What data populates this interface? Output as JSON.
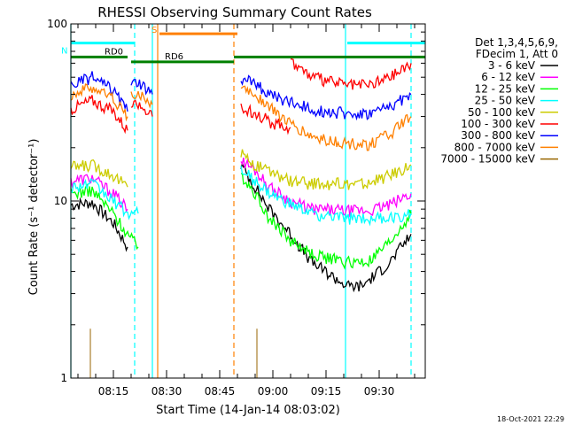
{
  "chart_data": {
    "type": "line",
    "title": "RHESSI Observing Summary Count Rates",
    "xlabel": "Start Time (14-Jan-14 08:03:02)",
    "ylabel": "Count Rate (s⁻¹ detector⁻¹)",
    "yscale": "log",
    "ylim": [
      1,
      100
    ],
    "xlim_minutes_after_0803": [
      0,
      100
    ],
    "x_ticks": [
      "08:15",
      "08:30",
      "08:45",
      "09:00",
      "09:15",
      "09:30"
    ],
    "y_ticks": [
      "1",
      "10",
      "100"
    ],
    "legend_header": [
      "Det 1,3,4,5,6,9,",
      "FDecim 1, Att 0"
    ],
    "legend_placement": "right",
    "timestamp": "18-Oct-2021 22:29",
    "series": [
      {
        "name": "3 - 6 keV",
        "color": "#000000",
        "segments": [
          {
            "t": [
              0,
              6,
              12,
              16
            ],
            "y": [
              9.5,
              9.8,
              7.5,
              5.5
            ]
          },
          {
            "t": [
              48,
              52,
              56,
              62,
              68,
              78,
              82,
              90,
              96
            ],
            "y": [
              16,
              12,
              9,
              6.5,
              4.5,
              3.3,
              3.3,
              4.5,
              6.5
            ]
          }
        ]
      },
      {
        "name": "6 - 12 keV",
        "color": "#ff00ff",
        "segments": [
          {
            "t": [
              0,
              6,
              12,
              16
            ],
            "y": [
              13,
              13.5,
              11,
              9
            ]
          },
          {
            "t": [
              48,
              52,
              56,
              62,
              68,
              78,
              84,
              90,
              96
            ],
            "y": [
              17,
              15,
              12,
              10,
              9,
              8.8,
              8.8,
              9.5,
              11
            ]
          }
        ]
      },
      {
        "name": "12 - 25 keV",
        "color": "#00ff00",
        "segments": [
          {
            "t": [
              0,
              6,
              12,
              16,
              19
            ],
            "y": [
              11,
              11.5,
              8.5,
              6.5,
              5.5
            ]
          },
          {
            "t": [
              48,
              52,
              56,
              62,
              68,
              78,
              84,
              90,
              96
            ],
            "y": [
              14,
              11,
              8,
              6,
              5,
              4.5,
              4.5,
              5.8,
              8.5
            ]
          }
        ]
      },
      {
        "name": "25 - 50 keV",
        "color": "#00ffff",
        "segments": [
          {
            "t": [
              0,
              6,
              12,
              16,
              19
            ],
            "y": [
              12,
              12.5,
              10,
              8.5,
              8.5
            ]
          },
          {
            "t": [
              48,
              52,
              56,
              62,
              68,
              76,
              84,
              90,
              96
            ],
            "y": [
              15,
              13,
              11,
              9.5,
              8.5,
              8.0,
              8.0,
              8.0,
              8.5
            ]
          }
        ]
      },
      {
        "name": "50 - 100 keV",
        "color": "#cccc00",
        "segments": [
          {
            "t": [
              0,
              6,
              12,
              16
            ],
            "y": [
              15.5,
              16,
              14,
              12
            ]
          },
          {
            "t": [
              48,
              52,
              56,
              62,
              68,
              78,
              84,
              90,
              96
            ],
            "y": [
              19,
              16,
              14.5,
              13,
              12.5,
              12.5,
              12.5,
              14,
              16
            ]
          }
        ]
      },
      {
        "name": "100 - 300 keV",
        "color": "#ff0000",
        "segments": [
          {
            "t": [
              0,
              6,
              12,
              16
            ],
            "y": [
              33,
              37,
              32,
              25
            ]
          },
          {
            "t": [
              17,
              19,
              23
            ],
            "y": [
              35,
              36,
              30
            ]
          },
          {
            "t": [
              48,
              52,
              56,
              62
            ],
            "y": [
              33,
              32,
              28,
              26
            ]
          },
          {
            "t": [
              62,
              68,
              78,
              84,
              90,
              96
            ],
            "y": [
              62,
              50,
              45,
              45,
              50,
              60
            ]
          }
        ]
      },
      {
        "name": "300 - 800 keV",
        "color": "#0000ff",
        "segments": [
          {
            "t": [
              0,
              6,
              12,
              16
            ],
            "y": [
              45,
              50,
              42,
              32
            ]
          },
          {
            "t": [
              17,
              19,
              23
            ],
            "y": [
              45,
              46,
              40
            ]
          },
          {
            "t": [
              48,
              52,
              56,
              62,
              68,
              78,
              84,
              90,
              96
            ],
            "y": [
              50,
              46,
              40,
              36,
              33,
              31,
              31,
              34,
              40
            ]
          }
        ]
      },
      {
        "name": "800 - 7000 keV",
        "color": "#ff8000",
        "segments": [
          {
            "t": [
              0,
              6,
              12,
              16
            ],
            "y": [
              40,
              44,
              38,
              30
            ]
          },
          {
            "t": [
              17,
              19,
              23
            ],
            "y": [
              40,
              41,
              35
            ]
          },
          {
            "t": [
              48,
              52,
              56,
              62,
              68,
              78,
              84,
              90,
              96
            ],
            "y": [
              44,
              40,
              34,
              27,
              23,
              21,
              21,
              24,
              30
            ]
          }
        ]
      },
      {
        "name": "7000 - 15000 keV",
        "color": "#996600",
        "segments": [
          {
            "t": [
              5.5
            ],
            "y": [
              1.9
            ]
          },
          {
            "t": [
              52.5
            ],
            "y": [
              1.9
            ]
          }
        ]
      }
    ],
    "state_bars": [
      {
        "label": "RD0",
        "color": "#008000",
        "y": 65,
        "from": 0,
        "to": 16
      },
      {
        "label": "RD6",
        "color": "#008000",
        "y": 61,
        "from": 17,
        "to": 46
      },
      {
        "label": "",
        "color": "#008000",
        "y": 65,
        "from": 46,
        "to": 100
      },
      {
        "label": "N",
        "color": "#00ffff",
        "y": 78,
        "from": 0,
        "to": 18
      },
      {
        "label": "",
        "color": "#00ffff",
        "y": 78,
        "from": 78,
        "to": 100
      },
      {
        "label": "S",
        "color": "#ff8000",
        "y": 88,
        "from": 25,
        "to": 47
      }
    ],
    "vertical_markers": [
      {
        "t": 0,
        "color": "#00ffff",
        "style": "solid"
      },
      {
        "t": 18,
        "color": "#00ffff",
        "style": "dashed"
      },
      {
        "t": 23,
        "color": "#00ffff",
        "style": "solid"
      },
      {
        "t": 24.5,
        "color": "#ff8000",
        "style": "solid"
      },
      {
        "t": 46,
        "color": "#ff8000",
        "style": "dashed"
      },
      {
        "t": 77.5,
        "color": "#00ffff",
        "style": "solid"
      },
      {
        "t": 96,
        "color": "#00ffff",
        "style": "dashed"
      }
    ]
  }
}
